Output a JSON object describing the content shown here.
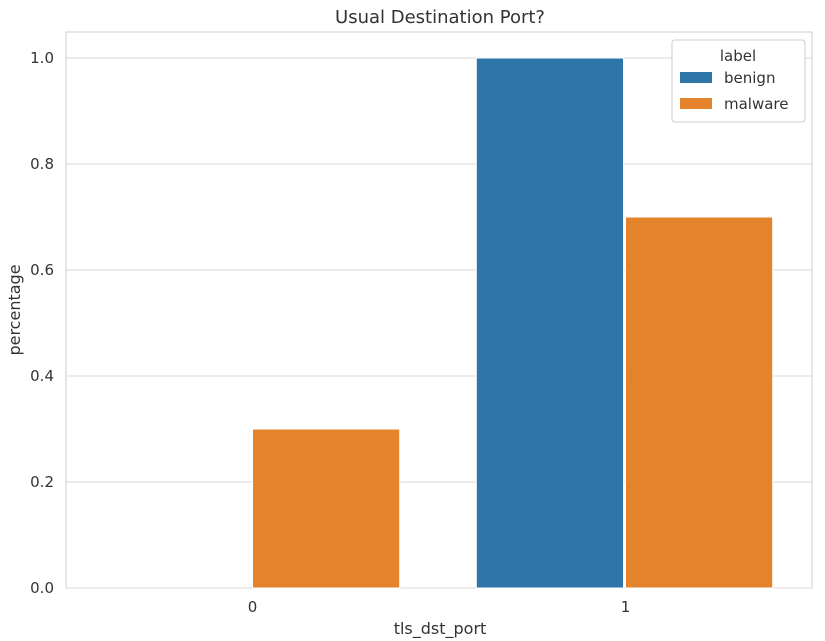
{
  "chart_data": {
    "type": "bar",
    "title": "Usual Destination Port?",
    "xlabel": "tls_dst_port",
    "ylabel": "percentage",
    "categories": [
      "0",
      "1"
    ],
    "series": [
      {
        "name": "benign",
        "color": "#2e75a8",
        "values": [
          0.0,
          1.0
        ]
      },
      {
        "name": "malware",
        "color": "#e5822c",
        "values": [
          0.3,
          0.7
        ]
      }
    ],
    "ylim": [
      0,
      1.05
    ],
    "yticks": [
      0.0,
      0.2,
      0.4,
      0.6,
      0.8,
      1.0
    ],
    "ytick_labels": [
      "0.0",
      "0.2",
      "0.4",
      "0.6",
      "0.8",
      "1.0"
    ],
    "grid": "horizontal",
    "legend": {
      "title": "label",
      "placement": "top-right"
    }
  }
}
